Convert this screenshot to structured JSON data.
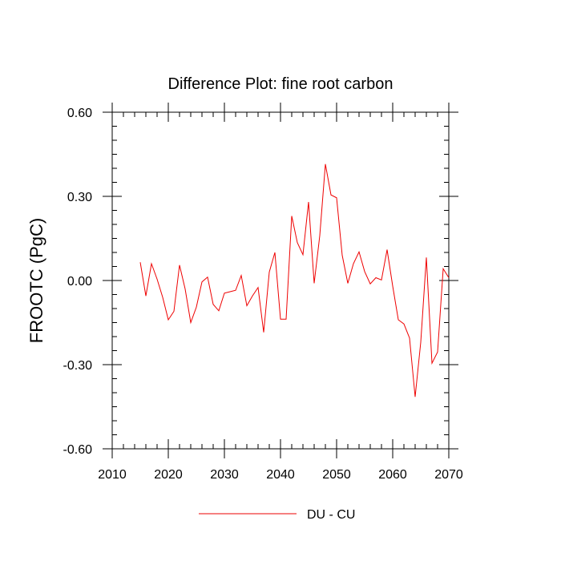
{
  "chart_data": {
    "type": "line",
    "title": "Difference Plot: fine root carbon",
    "ylabel": "FROOTC  (PgC)",
    "xlabel": "",
    "xlim": [
      2010,
      2070
    ],
    "ylim": [
      -0.6,
      0.6
    ],
    "x_ticks": [
      2010,
      2020,
      2030,
      2040,
      2050,
      2060,
      2070
    ],
    "x_tick_labels": [
      "2010",
      "2020",
      "2030",
      "2040",
      "2050",
      "2060",
      "2070"
    ],
    "y_ticks": [
      -0.6,
      -0.3,
      0.0,
      0.3,
      0.6
    ],
    "y_tick_labels": [
      "-0.60",
      "-0.30",
      "0.00",
      "0.30",
      "0.60"
    ],
    "x_minor_step": 2,
    "y_minor_step": 0.05,
    "grid": false,
    "legend_position": "bottom-center",
    "series": [
      {
        "name": "DU - CU",
        "color": "#ee0000",
        "x": [
          2015,
          2016,
          2017,
          2018,
          2019,
          2020,
          2021,
          2022,
          2023,
          2024,
          2025,
          2026,
          2027,
          2028,
          2029,
          2030,
          2031,
          2032,
          2033,
          2034,
          2035,
          2036,
          2037,
          2038,
          2039,
          2040,
          2041,
          2042,
          2043,
          2044,
          2045,
          2046,
          2047,
          2048,
          2049,
          2050,
          2051,
          2052,
          2053,
          2054,
          2055,
          2056,
          2057,
          2058,
          2059,
          2060,
          2061,
          2062,
          2063,
          2064,
          2065,
          2066,
          2067,
          2068,
          2069,
          2070
        ],
        "values": [
          0.065,
          -0.055,
          0.06,
          0.005,
          -0.06,
          -0.14,
          -0.11,
          0.055,
          -0.03,
          -0.15,
          -0.095,
          -0.005,
          0.012,
          -0.085,
          -0.108,
          -0.045,
          -0.04,
          -0.035,
          0.018,
          -0.09,
          -0.055,
          -0.025,
          -0.185,
          0.03,
          0.1,
          -0.138,
          -0.138,
          0.23,
          0.135,
          0.092,
          0.28,
          -0.01,
          0.16,
          0.415,
          0.305,
          0.295,
          0.09,
          -0.01,
          0.06,
          0.102,
          0.032,
          -0.012,
          0.01,
          0.002,
          0.11,
          -0.02,
          -0.14,
          -0.155,
          -0.205,
          -0.415,
          -0.22,
          0.082,
          -0.295,
          -0.255,
          0.042,
          0.01
        ]
      }
    ]
  }
}
